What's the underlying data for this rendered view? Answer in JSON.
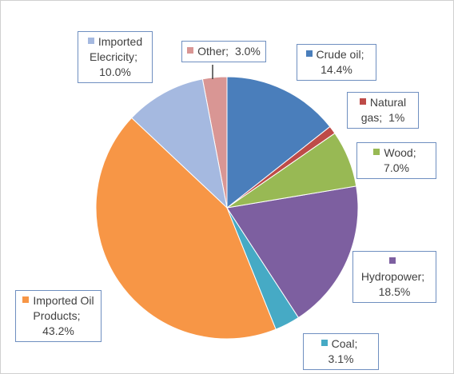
{
  "chart_data": {
    "type": "pie",
    "categories": [
      "Crude oil",
      "Natural gas",
      "Wood",
      "Hydropower",
      "Coal",
      "Imported Oil Products",
      "Imported Elecricity",
      "Other"
    ],
    "values": [
      14.4,
      1,
      7.0,
      18.5,
      3.1,
      43.2,
      10.0,
      3.0
    ],
    "value_labels": [
      "14.4%",
      "1%",
      "7.0%",
      "18.5%",
      "3.1%",
      "43.2%",
      "10.0%",
      "3.0%"
    ],
    "label_separator": ";",
    "colors": [
      "#4a7ebb",
      "#be4b48",
      "#98b954",
      "#7d5fa0",
      "#46aac5",
      "#f79646",
      "#a5b9e0",
      "#d99694"
    ]
  }
}
